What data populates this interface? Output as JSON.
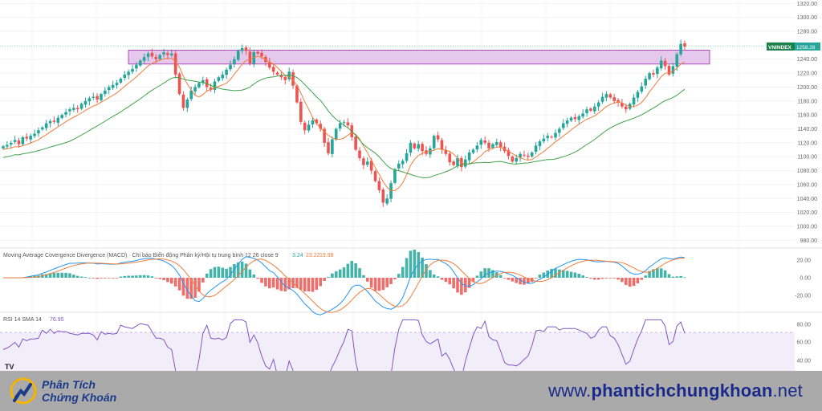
{
  "chart_data": [
    {
      "type": "candlestick",
      "symbol": "VNINDEX",
      "last_value": "1258.28",
      "y_axis_ticks": [
        "1320.00",
        "1300.00",
        "1280.00",
        "1260.00",
        "1240.00",
        "1220.00",
        "1200.00",
        "1180.00",
        "1160.00",
        "1140.00",
        "1120.00",
        "1100.00",
        "1080.00",
        "1060.00",
        "1040.00",
        "1020.00",
        "1000.00",
        "980.00"
      ],
      "ylim": [
        970,
        1325
      ],
      "resistance_zone": [
        1233,
        1253
      ],
      "series": [
        {
          "name": "MA fast",
          "color": "#f07c3c"
        },
        {
          "name": "MA slow",
          "color": "#3fa24a"
        }
      ],
      "close": [
        1115,
        1117,
        1120,
        1124,
        1118,
        1128,
        1126,
        1130,
        1133,
        1138,
        1142,
        1148,
        1151,
        1150,
        1156,
        1160,
        1164,
        1168,
        1170,
        1168,
        1176,
        1180,
        1184,
        1186,
        1182,
        1190,
        1195,
        1200,
        1203,
        1206,
        1212,
        1218,
        1222,
        1226,
        1232,
        1238,
        1243,
        1248,
        1244,
        1240,
        1246,
        1250,
        1246,
        1248,
        1218,
        1190,
        1170,
        1182,
        1195,
        1200,
        1206,
        1210,
        1200,
        1196,
        1208,
        1214,
        1218,
        1225,
        1232,
        1240,
        1252,
        1256,
        1252,
        1234,
        1250,
        1248,
        1244,
        1236,
        1228,
        1222,
        1218,
        1214,
        1210,
        1222,
        1202,
        1178,
        1150,
        1138,
        1146,
        1152,
        1148,
        1140,
        1120,
        1105,
        1125,
        1140,
        1148,
        1150,
        1145,
        1128,
        1110,
        1098,
        1088,
        1093,
        1080,
        1065,
        1052,
        1034,
        1040,
        1062,
        1082,
        1090,
        1094,
        1105,
        1120,
        1112,
        1118,
        1108,
        1104,
        1112,
        1130,
        1125,
        1110,
        1104,
        1092,
        1088,
        1098,
        1085,
        1096,
        1106,
        1110,
        1116,
        1124,
        1120,
        1112,
        1118,
        1121,
        1114,
        1108,
        1101,
        1093,
        1098,
        1104,
        1102,
        1100,
        1106,
        1116,
        1122,
        1126,
        1130,
        1128,
        1134,
        1140,
        1148,
        1152,
        1156,
        1154,
        1158,
        1162,
        1168,
        1166,
        1172,
        1178,
        1186,
        1190,
        1185,
        1180,
        1178,
        1172,
        1168,
        1176,
        1185,
        1193,
        1201,
        1212,
        1220,
        1218,
        1228,
        1238,
        1230,
        1218,
        1230,
        1247,
        1262,
        1258
      ],
      "macd_legend": "Moving Average Covergence Divergence (MACD) · Chỉ báo Biến động Phân kỳ/Hội tụ trung bình 12 26 close 9",
      "macd_values": [
        "3.24",
        "23.22",
        "19.98"
      ],
      "macd_ticks": [
        "20.00",
        "0.00",
        "-20.00"
      ],
      "rsi_legend": "RSI 14 SMA 14",
      "rsi_value": "76.95",
      "rsi_ticks": [
        "80.00",
        "60.00",
        "40.00"
      ]
    }
  ],
  "footer": {
    "brand_line1": "Phân Tích",
    "brand_line2": "Chứng Khoán",
    "url_prefix": "www.",
    "url_main": "phantichchungkhoan",
    "url_suffix": ".net"
  },
  "colors": {
    "up": "#26a69a",
    "down": "#ef5350",
    "macd_line": "#2196f3",
    "signal_line": "#f07c3c",
    "rsi_line": "#7e57c2",
    "zone": "#e1bee7"
  }
}
